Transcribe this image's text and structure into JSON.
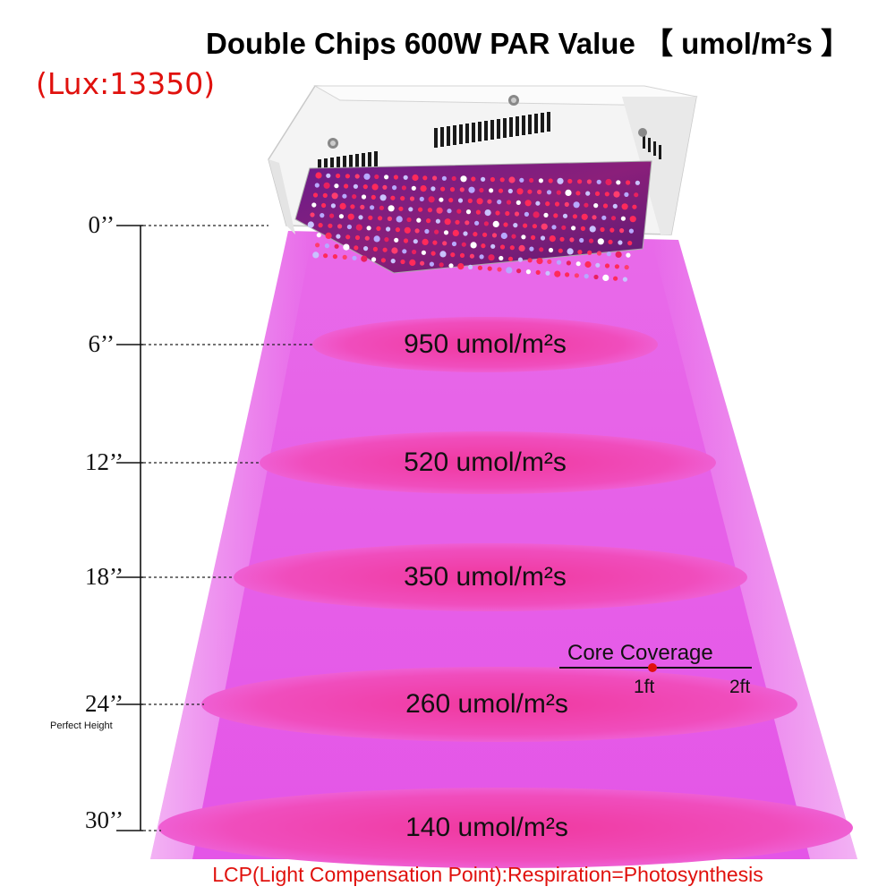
{
  "title": "Double Chips 600W PAR Value 【 umol/m²s 】",
  "lux": "(Lux:13350)",
  "heights": [
    {
      "label": "0’’"
    },
    {
      "label": "6’’",
      "par": "950 umol/m²s"
    },
    {
      "label": "12’’",
      "par": "520 umol/m²s"
    },
    {
      "label": "18’’",
      "par": "350 umol/m²s"
    },
    {
      "label": "24’’",
      "par": "260 umol/m²s",
      "note": "Perfect Height"
    },
    {
      "label": "30’’",
      "par": "140 umol/m²s"
    }
  ],
  "core_coverage": {
    "title": "Core Coverage",
    "ticks": [
      "1ft",
      "2ft"
    ]
  },
  "footer": "LCP(Light Compensation Point):Respiration=Photosynthesis",
  "colors": {
    "beam": "#e55ae8",
    "ellipse": "#f23fbf",
    "accent_red": "#e0110d"
  }
}
